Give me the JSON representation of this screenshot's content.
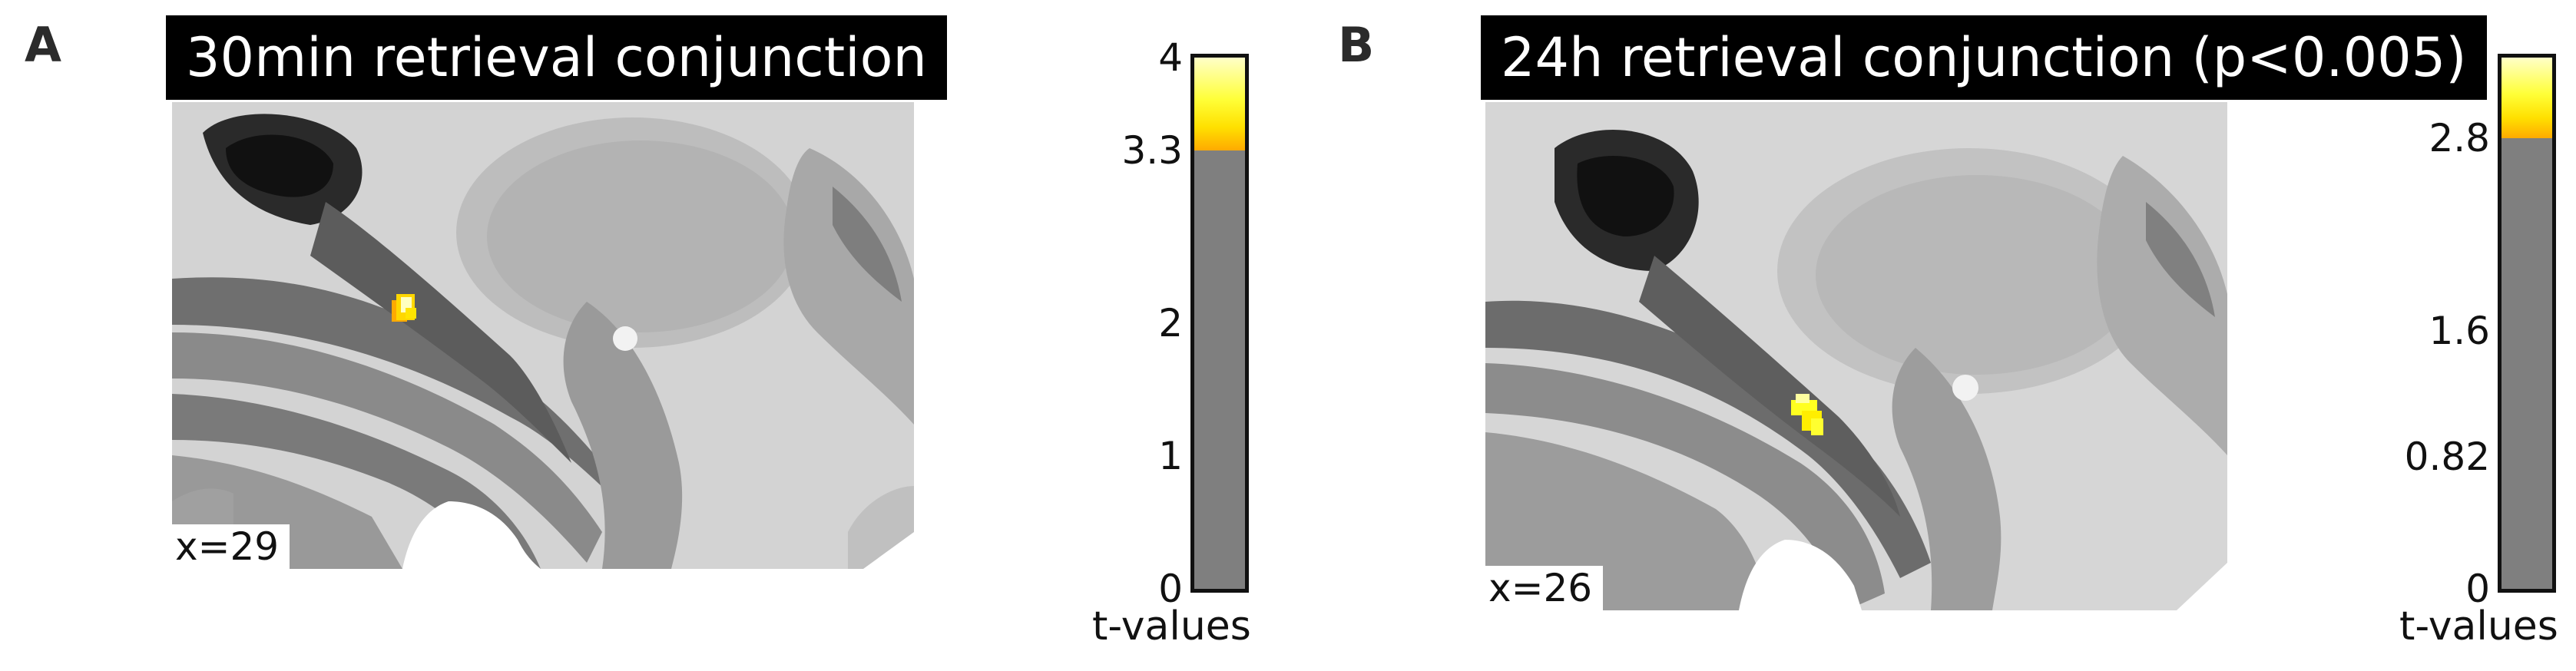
{
  "panels": [
    {
      "letter": "A",
      "title": "30min retrieval conjunction",
      "coord": "x=29",
      "colorbar": {
        "label": "t-values",
        "min": 0,
        "max": 4,
        "threshold": 3.3,
        "ticks": [
          "4",
          "3.3",
          "2",
          "1",
          "0"
        ]
      }
    },
    {
      "letter": "B",
      "title": "24h retrieval conjunction (p<0.005)",
      "coord": "x=26",
      "colorbar": {
        "label": "t-values",
        "min": 0,
        "max": 3.3,
        "threshold": 2.8,
        "ticks": [
          "2.8",
          "1.6",
          "0.82",
          "0"
        ]
      }
    }
  ],
  "colors": {
    "title_bg": "#000000",
    "title_fg": "#ffffff",
    "subthreshold": "#7f7f7f",
    "hot_low": "#ffaa00",
    "hot_high": "#ffffc8"
  }
}
